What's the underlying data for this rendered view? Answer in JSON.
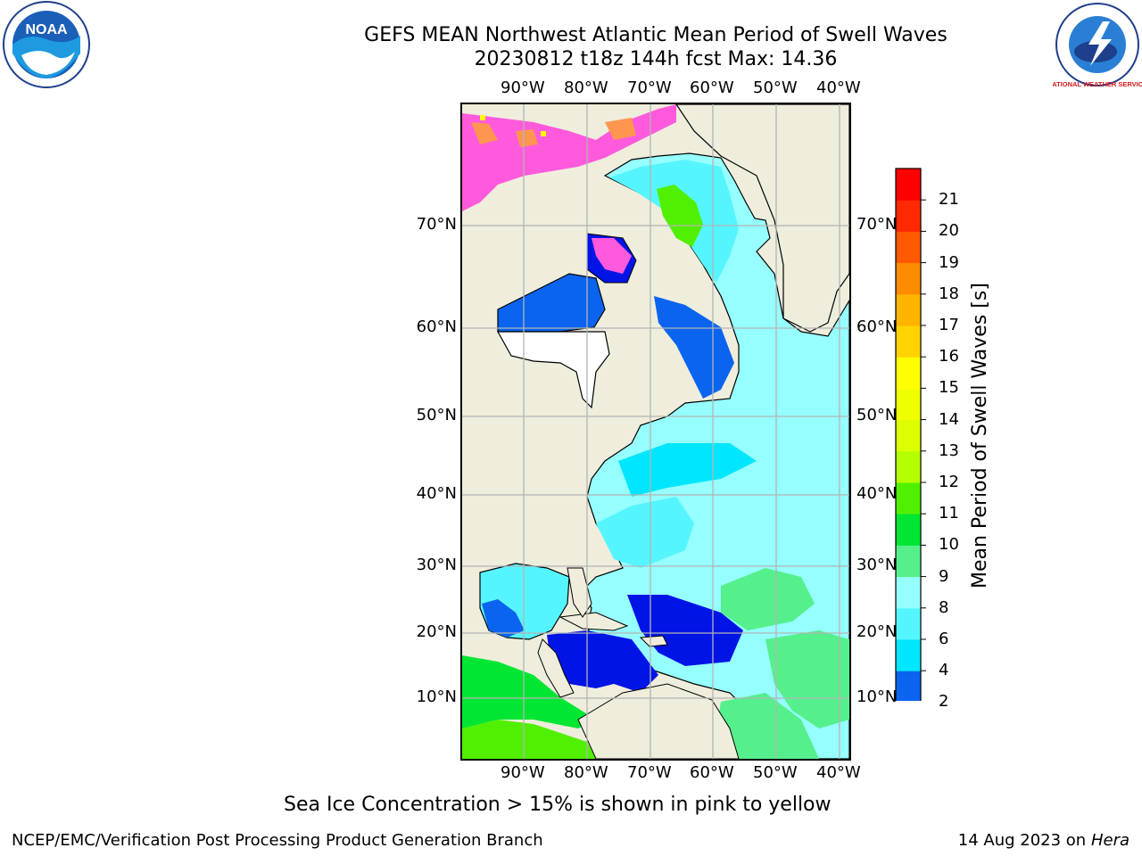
{
  "title": {
    "line1": "GEFS MEAN Northwest Atlantic Mean Period of Swell Waves",
    "line2": "20230812 t18z 144h fcst   Max: 14.36"
  },
  "logos": {
    "left": {
      "icon": "noaa-logo",
      "text": "NOAA"
    },
    "right": {
      "icon": "nws-logo",
      "text": "NATIONAL WEATHER SERVICE"
    }
  },
  "map": {
    "lon_labels": [
      "90°W",
      "80°W",
      "70°W",
      "60°W",
      "50°W",
      "40°W"
    ],
    "lat_labels": [
      "70°N",
      "60°N",
      "50°N",
      "40°N",
      "30°N",
      "20°N",
      "10°N"
    ],
    "land_color": "#efeddc",
    "grid_color": "#b4b4b4"
  },
  "colorbar": {
    "label": "Mean Period of Swell Waves [s]",
    "ticks": [
      "2",
      "4",
      "6",
      "8",
      "9",
      "10",
      "11",
      "12",
      "13",
      "14",
      "15",
      "16",
      "17",
      "18",
      "19",
      "20",
      "21"
    ],
    "colors": [
      "#0a64f0",
      "#00e6ff",
      "#55f5ff",
      "#96ffff",
      "#55f08c",
      "#00e632",
      "#50f000",
      "#b4ff00",
      "#dcff00",
      "#f0ff00",
      "#ffff00",
      "#ffd200",
      "#ffb400",
      "#ff8c00",
      "#ff5a00",
      "#ff2800",
      "#ff0000"
    ],
    "under_color": "#0014e6"
  },
  "note": "Sea Ice Concentration > 15% is shown in pink to yellow",
  "footer": {
    "left": "NCEP/EMC/Verification Post Processing Product Generation Branch",
    "right_date": "14 Aug 2023 on",
    "right_host": "Hera"
  }
}
